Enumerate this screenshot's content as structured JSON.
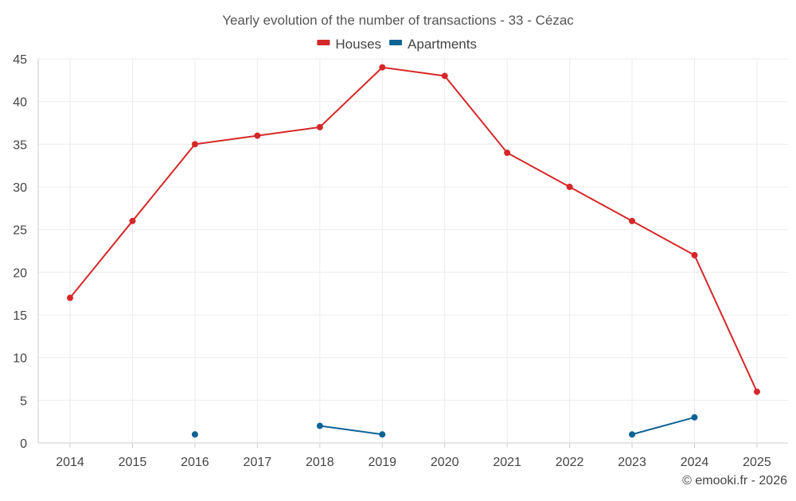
{
  "chart_data": {
    "type": "line",
    "title": "Yearly evolution of the number of transactions - 33 - Cézac",
    "categories": [
      "2014",
      "2015",
      "2016",
      "2017",
      "2018",
      "2019",
      "2020",
      "2021",
      "2022",
      "2023",
      "2024",
      "2025"
    ],
    "y_ticks": [
      "0",
      "5",
      "10",
      "15",
      "20",
      "25",
      "30",
      "35",
      "40",
      "45"
    ],
    "ylim": [
      0,
      45
    ],
    "xlabel": "",
    "ylabel": "",
    "grid": true,
    "legend_position": "top-center",
    "series": [
      {
        "name": "Houses",
        "color": "#d62728",
        "values": [
          17,
          26,
          35,
          36,
          37,
          44,
          43,
          34,
          30,
          26,
          22,
          6
        ]
      },
      {
        "name": "Apartments",
        "color": "#0e6395",
        "values": [
          null,
          null,
          1,
          null,
          2,
          1,
          null,
          null,
          null,
          1,
          3,
          null
        ]
      }
    ]
  },
  "footer": {
    "copyright": "© emooki.fr - 2026"
  },
  "colors": {
    "grid": "#ebebeb",
    "axis_text": "#444444",
    "title_text": "#555555"
  }
}
